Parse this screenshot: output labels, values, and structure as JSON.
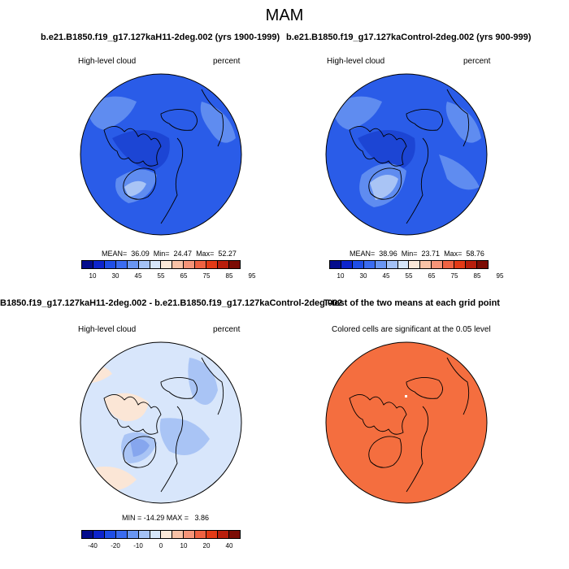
{
  "figure": {
    "title": "MAM",
    "panel_titles": {
      "case1": "b.e21.B1850.f19_g17.127kaH11-2deg.002 (yrs 1900-1999)",
      "case2": "b.e21.B1850.f19_g17.127kaControl-2deg.002 (yrs 900-999)",
      "diff": "B1850.f19_g17.127kaH11-2deg.002 - b.e21.B1850.f19_g17.127kaControl-2deg.002",
      "ttest": "T-test of the two means at each grid point"
    }
  },
  "panels": [
    {
      "id": "case1",
      "variable": "High-level cloud",
      "units": "percent",
      "stats": "MEAN=  36.09  Min=  24.47  Max=  52.27"
    },
    {
      "id": "case2",
      "variable": "High-level cloud",
      "units": "percent",
      "stats": "MEAN=  38.96  Min=  23.71  Max=  58.76"
    },
    {
      "id": "diff",
      "variable": "High-level cloud",
      "units": "percent",
      "stats": "MIN = -14.29 MAX =   3.86"
    },
    {
      "id": "ttest",
      "note": "Colored cells are significant at the 0.05 level"
    }
  ],
  "colorbars": {
    "absolute": {
      "tick_labels": [
        "10",
        "30",
        "45",
        "55",
        "65",
        "75",
        "85",
        "95"
      ],
      "colors": [
        "#040c8c",
        "#0d24cc",
        "#1f4ee6",
        "#3b6cf0",
        "#6a96f2",
        "#a4c2f6",
        "#d6e6fa",
        "#fbe8d8",
        "#f8c2a6",
        "#f59478",
        "#ef6242",
        "#e33a16",
        "#b81e0c",
        "#7c0c04"
      ]
    },
    "difference": {
      "tick_labels": [
        "-40",
        "-20",
        "-10",
        "0",
        "10",
        "20",
        "40"
      ],
      "colors": [
        "#040c8c",
        "#0d24cc",
        "#1f4ee6",
        "#3b6cf0",
        "#6a96f2",
        "#a4c2f6",
        "#d6e6fa",
        "#fbe8d8",
        "#f8c2a6",
        "#f59478",
        "#ef6242",
        "#e33a16",
        "#b81e0c",
        "#7c0c04"
      ]
    }
  },
  "map_colors": {
    "case_base": "#2a5ce8",
    "case_dark": "#1c45d4",
    "case_light": "#5f8cf0",
    "case_lighter": "#a9c4f5",
    "diff_base": "#d8e6fb",
    "diff_blue": "#a9c4f5",
    "diff_blue2": "#86a6ee",
    "diff_orange": "#fbe6d6",
    "ttest_fill": "#f46e3f"
  }
}
